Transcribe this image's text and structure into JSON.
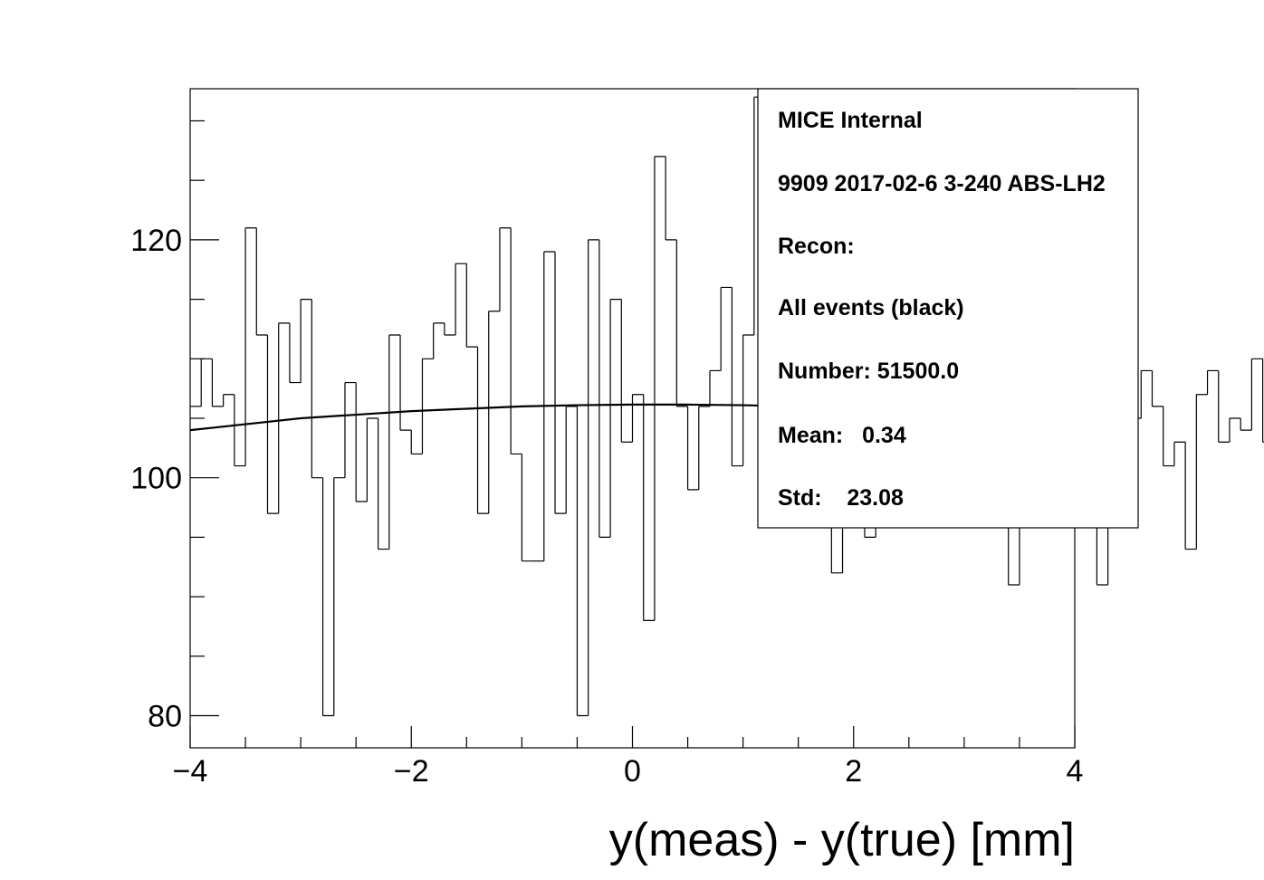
{
  "chart_data": {
    "type": "histogram",
    "xlabel": "y(meas) - y(true) [mm]",
    "ylabel": "",
    "xlim": [
      -4,
      4
    ],
    "ylim": [
      77.3,
      132.7
    ],
    "x_ticks": [
      -4,
      -2,
      0,
      2,
      4
    ],
    "x_tick_labels": [
      "−4",
      "−2",
      "0",
      "2",
      "4"
    ],
    "y_ticks": [
      80,
      100,
      120
    ],
    "y_tick_labels": [
      "80",
      "100",
      "120"
    ],
    "bin_edges_start": -4.0,
    "bin_width": 0.1,
    "histogram_values": [
      106,
      110,
      106,
      107,
      101,
      121,
      112,
      97,
      113,
      108,
      115,
      100,
      80,
      100,
      108,
      98,
      105,
      94,
      112,
      104,
      102,
      110,
      113,
      112,
      118,
      111,
      97,
      114,
      121,
      102,
      93,
      93,
      119,
      97,
      106,
      80,
      120,
      95,
      115,
      103,
      107,
      88,
      127,
      120,
      106,
      99,
      106,
      109,
      116,
      101,
      112,
      132,
      106,
      107,
      99,
      108,
      124,
      107,
      92,
      104,
      111,
      95,
      105,
      109,
      100,
      100,
      106,
      100,
      98,
      104,
      106,
      108,
      105,
      103,
      91,
      105,
      110,
      112,
      109,
      106,
      100,
      100,
      91,
      106,
      104,
      105,
      109,
      106,
      101,
      103,
      94,
      107,
      109,
      103,
      105,
      104,
      110,
      103,
      92,
      104
    ],
    "fit": {
      "type": "line",
      "x": [
        -4.0,
        -3.5,
        -3.0,
        -2.5,
        -2.0,
        -1.5,
        -1.0,
        -0.5,
        0.0,
        0.5,
        1.0,
        1.5,
        2.0
      ],
      "y": [
        104.0,
        104.5,
        105.0,
        105.3,
        105.6,
        105.8,
        106.0,
        106.1,
        106.15,
        106.15,
        106.1,
        106.0,
        105.9
      ]
    },
    "grid": false,
    "legend": "top-right",
    "colors": {
      "histogram": "#000000",
      "fit": "#000000",
      "background": "#ffffff"
    }
  },
  "stats_box": {
    "lines": [
      "MICE Internal",
      "9909 2017-02-6 3-240 ABS-LH2",
      "Recon:",
      "All events (black)",
      "Number: 51500.0",
      "Mean:   0.34",
      "Std:    23.08"
    ]
  }
}
